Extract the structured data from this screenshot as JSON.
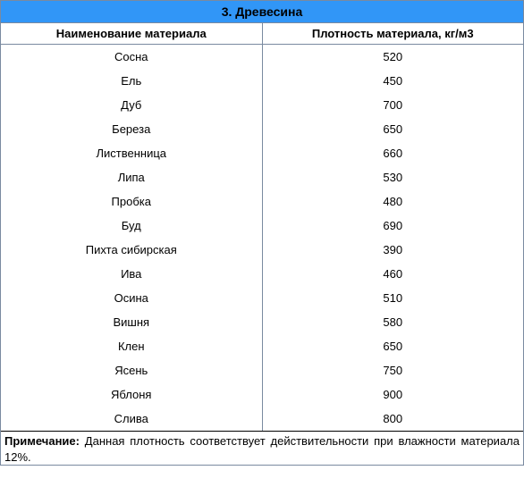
{
  "title": "3. Древесина",
  "columns": {
    "name": "Наименование материала",
    "density": "Плотность материала, кг/м3"
  },
  "rows": [
    {
      "name": "Сосна",
      "density": "520"
    },
    {
      "name": "Ель",
      "density": "450"
    },
    {
      "name": "Дуб",
      "density": "700"
    },
    {
      "name": "Береза",
      "density": "650"
    },
    {
      "name": "Лиственница",
      "density": "660"
    },
    {
      "name": "Липа",
      "density": "530"
    },
    {
      "name": "Пробка",
      "density": "480"
    },
    {
      "name": "Буд",
      "density": "690"
    },
    {
      "name": "Пихта сибирская",
      "density": "390"
    },
    {
      "name": "Ива",
      "density": "460"
    },
    {
      "name": "Осина",
      "density": "510"
    },
    {
      "name": "Вишня",
      "density": "580"
    },
    {
      "name": "Клен",
      "density": "650"
    },
    {
      "name": "Ясень",
      "density": "750"
    },
    {
      "name": "Яблоня",
      "density": "900"
    },
    {
      "name": "Слива",
      "density": "800"
    }
  ],
  "note": {
    "label": "Примечание:",
    "text": " Данная плотность соответствует действительности при влажности материала 12%."
  },
  "style": {
    "title_bg": "#3196f7",
    "border_color": "#7a8aa0",
    "font_family": "Arial",
    "title_fontsize": 14,
    "header_fontsize": 13,
    "cell_fontsize": 13
  }
}
